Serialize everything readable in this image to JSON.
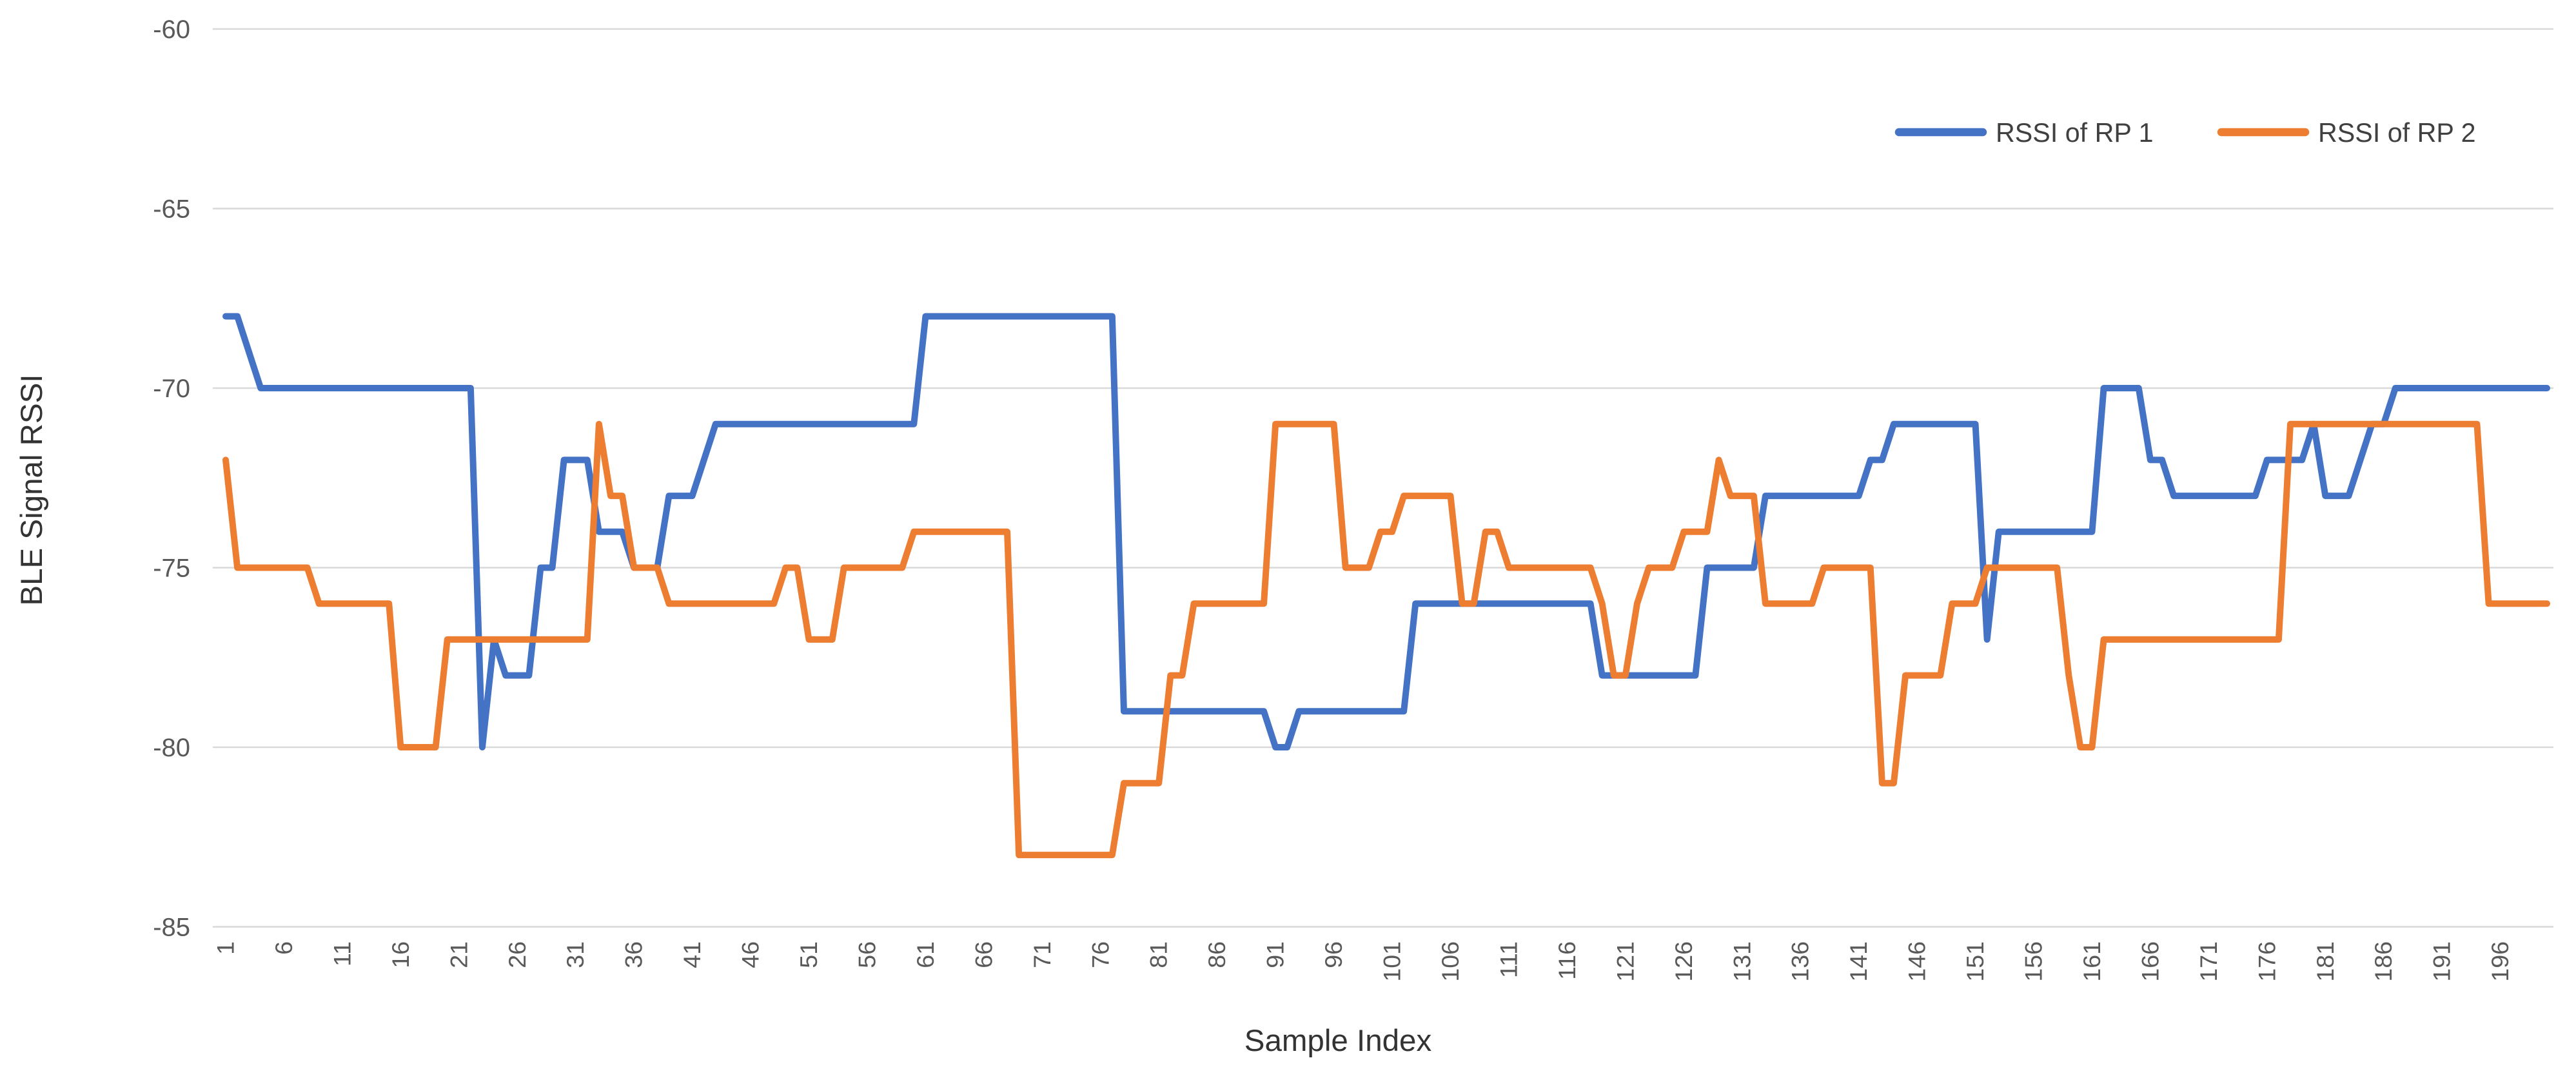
{
  "chart_data": {
    "type": "line",
    "title": "",
    "xlabel": "Sample Index",
    "ylabel": "BLE Signal RSSI",
    "x_range": [
      1,
      200
    ],
    "ylim": [
      -85,
      -60
    ],
    "yticks": [
      -60,
      -65,
      -70,
      -75,
      -80,
      -85
    ],
    "xticks": [
      1,
      6,
      11,
      16,
      21,
      26,
      31,
      36,
      41,
      46,
      51,
      56,
      61,
      66,
      71,
      76,
      81,
      86,
      91,
      96,
      101,
      106,
      111,
      116,
      121,
      126,
      131,
      136,
      141,
      146,
      151,
      156,
      161,
      166,
      171,
      176,
      181,
      186,
      191,
      196
    ],
    "grid": true,
    "legend_position": "top-right-inside",
    "colors": {
      "gridline": "#d9d9d9",
      "tick_text": "#595959",
      "title_text": "#333333",
      "background": "#ffffff"
    },
    "series": [
      {
        "name": "RSSI of RP 1",
        "color": "#4472C4",
        "values": [
          -68,
          -68,
          -69,
          -70,
          -70,
          -70,
          -70,
          -70,
          -70,
          -70,
          -70,
          -70,
          -70,
          -70,
          -70,
          -70,
          -70,
          -70,
          -70,
          -70,
          -70,
          -70,
          -80,
          -77,
          -78,
          -78,
          -78,
          -75,
          -75,
          -72,
          -72,
          -72,
          -74,
          -74,
          -74,
          -75,
          -75,
          -75,
          -73,
          -73,
          -73,
          -72,
          -71,
          -71,
          -71,
          -71,
          -71,
          -71,
          -71,
          -71,
          -71,
          -71,
          -71,
          -71,
          -71,
          -71,
          -71,
          -71,
          -71,
          -71,
          -68,
          -68,
          -68,
          -68,
          -68,
          -68,
          -68,
          -68,
          -68,
          -68,
          -68,
          -68,
          -68,
          -68,
          -68,
          -68,
          -68,
          -79,
          -79,
          -79,
          -79,
          -79,
          -79,
          -79,
          -79,
          -79,
          -79,
          -79,
          -79,
          -79,
          -80,
          -80,
          -79,
          -79,
          -79,
          -79,
          -79,
          -79,
          -79,
          -79,
          -79,
          -79,
          -76,
          -76,
          -76,
          -76,
          -76,
          -76,
          -76,
          -76,
          -76,
          -76,
          -76,
          -76,
          -76,
          -76,
          -76,
          -76,
          -78,
          -78,
          -78,
          -78,
          -78,
          -78,
          -78,
          -78,
          -78,
          -75,
          -75,
          -75,
          -75,
          -75,
          -73,
          -73,
          -73,
          -73,
          -73,
          -73,
          -73,
          -73,
          -73,
          -72,
          -72,
          -71,
          -71,
          -71,
          -71,
          -71,
          -71,
          -71,
          -71,
          -77,
          -74,
          -74,
          -74,
          -74,
          -74,
          -74,
          -74,
          -74,
          -74,
          -70,
          -70,
          -70,
          -70,
          -72,
          -72,
          -73,
          -73,
          -73,
          -73,
          -73,
          -73,
          -73,
          -73,
          -72,
          -72,
          -72,
          -72,
          -71,
          -73,
          -73,
          -73,
          -72,
          -71,
          -71,
          -70,
          -70,
          -70,
          -70,
          -70,
          -70,
          -70,
          -70,
          -70,
          -70,
          -70,
          -70,
          -70,
          -70
        ]
      },
      {
        "name": "RSSI of RP 2",
        "color": "#ED7D31",
        "values": [
          -72,
          -75,
          -75,
          -75,
          -75,
          -75,
          -75,
          -75,
          -76,
          -76,
          -76,
          -76,
          -76,
          -76,
          -76,
          -80,
          -80,
          -80,
          -80,
          -77,
          -77,
          -77,
          -77,
          -77,
          -77,
          -77,
          -77,
          -77,
          -77,
          -77,
          -77,
          -77,
          -71,
          -73,
          -73,
          -75,
          -75,
          -75,
          -76,
          -76,
          -76,
          -76,
          -76,
          -76,
          -76,
          -76,
          -76,
          -76,
          -75,
          -75,
          -77,
          -77,
          -77,
          -75,
          -75,
          -75,
          -75,
          -75,
          -75,
          -74,
          -74,
          -74,
          -74,
          -74,
          -74,
          -74,
          -74,
          -74,
          -83,
          -83,
          -83,
          -83,
          -83,
          -83,
          -83,
          -83,
          -83,
          -81,
          -81,
          -81,
          -81,
          -78,
          -78,
          -76,
          -76,
          -76,
          -76,
          -76,
          -76,
          -76,
          -71,
          -71,
          -71,
          -71,
          -71,
          -71,
          -75,
          -75,
          -75,
          -74,
          -74,
          -73,
          -73,
          -73,
          -73,
          -73,
          -76,
          -76,
          -74,
          -74,
          -75,
          -75,
          -75,
          -75,
          -75,
          -75,
          -75,
          -75,
          -76,
          -78,
          -78,
          -76,
          -75,
          -75,
          -75,
          -74,
          -74,
          -74,
          -72,
          -73,
          -73,
          -73,
          -76,
          -76,
          -76,
          -76,
          -76,
          -75,
          -75,
          -75,
          -75,
          -75,
          -81,
          -81,
          -78,
          -78,
          -78,
          -78,
          -76,
          -76,
          -76,
          -75,
          -75,
          -75,
          -75,
          -75,
          -75,
          -75,
          -78,
          -80,
          -80,
          -77,
          -77,
          -77,
          -77,
          -77,
          -77,
          -77,
          -77,
          -77,
          -77,
          -77,
          -77,
          -77,
          -77,
          -77,
          -77,
          -71,
          -71,
          -71,
          -71,
          -71,
          -71,
          -71,
          -71,
          -71,
          -71,
          -71,
          -71,
          -71,
          -71,
          -71,
          -71,
          -71,
          -76,
          -76,
          -76,
          -76,
          -76,
          -76
        ]
      }
    ]
  }
}
